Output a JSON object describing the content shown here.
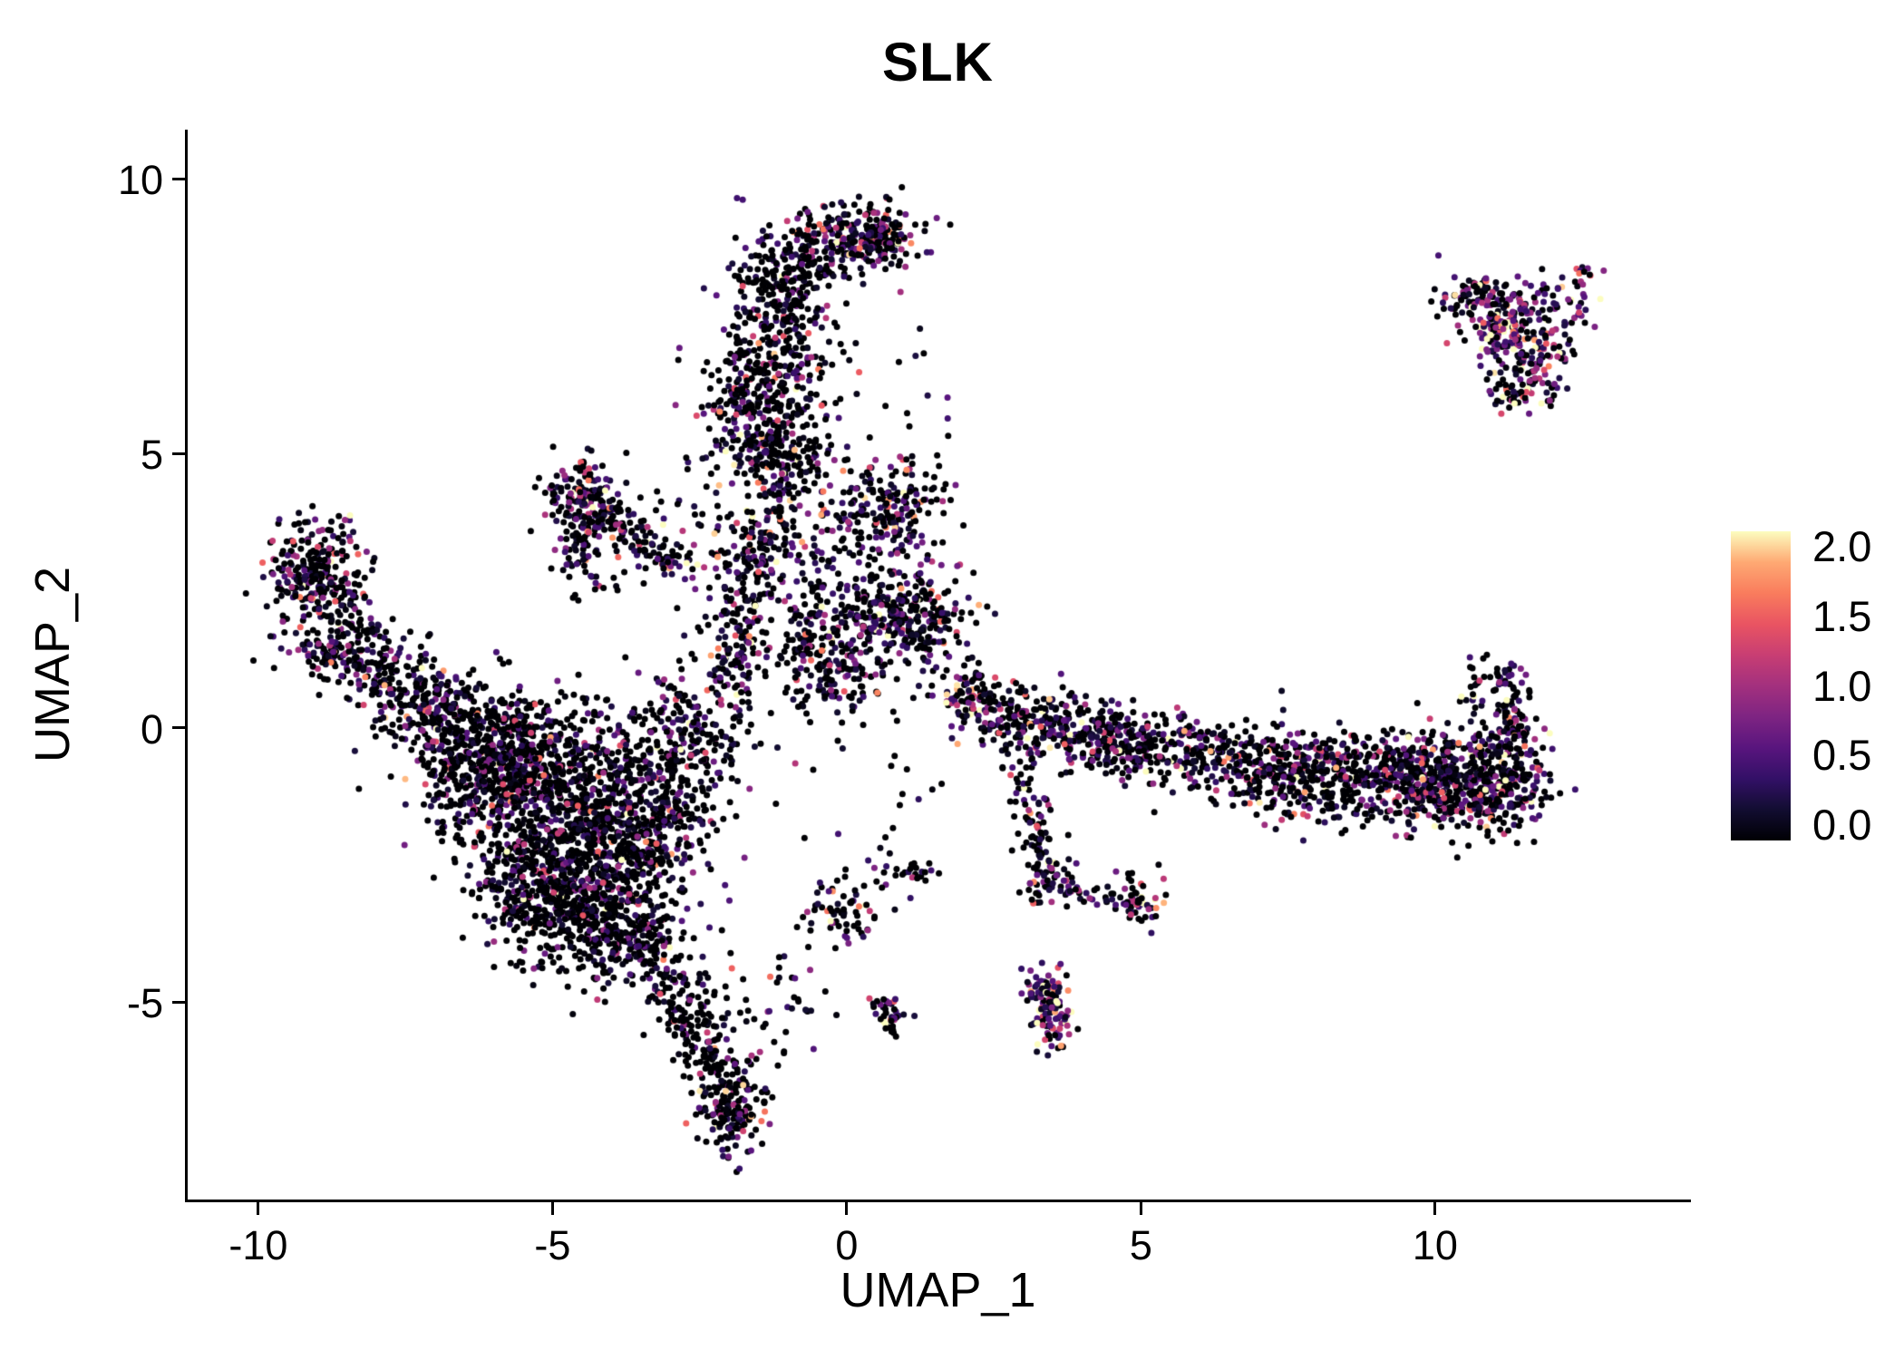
{
  "title": "SLK",
  "layout_colors": {
    "background": "#ffffff",
    "axis": "#000000",
    "text": "#000000"
  },
  "chart_data": {
    "type": "scatter",
    "title": "SLK",
    "xlabel": "UMAP_1",
    "ylabel": "UMAP_2",
    "xlim": [
      -11.2,
      14.3
    ],
    "ylim": [
      -8.6,
      10.9
    ],
    "grid": false,
    "x_ticks": [
      {
        "value": -10,
        "label": "-10"
      },
      {
        "value": -5,
        "label": "-5"
      },
      {
        "value": 0,
        "label": "0"
      },
      {
        "value": 5,
        "label": "5"
      },
      {
        "value": 10,
        "label": "10"
      }
    ],
    "y_ticks": [
      {
        "value": -5,
        "label": "-5"
      },
      {
        "value": 0,
        "label": "0"
      },
      {
        "value": 5,
        "label": "5"
      },
      {
        "value": 10,
        "label": "10"
      }
    ],
    "legend": {
      "position": "right",
      "domain": [
        0,
        2
      ],
      "ticks": [
        {
          "value": 2.0,
          "label": "2.0"
        },
        {
          "value": 1.5,
          "label": "1.5"
        },
        {
          "value": 1.0,
          "label": "1.0"
        },
        {
          "value": 0.5,
          "label": "0.5"
        },
        {
          "value": 0.0,
          "label": "0.0"
        }
      ]
    },
    "color_scale": {
      "name": "magma",
      "value_domain": [
        0,
        2.05
      ],
      "stops": [
        "#000004",
        "#120d31",
        "#331067",
        "#59157e",
        "#7e2482",
        "#a3307e",
        "#c83e73",
        "#e95462",
        "#f97c5d",
        "#fea973",
        "#fcfdbf"
      ]
    },
    "point_radius_px": 3.5,
    "seed": 7,
    "clusters": {
      "gauss_format": "[center_x, center_y, sd_x, sd_y, n_points, p_zero_expression, expression_scale]",
      "gauss": [
        [
          0.15,
          8.95,
          0.5,
          0.3,
          220,
          0.5,
          0.6
        ],
        [
          0.7,
          9.0,
          0.2,
          0.25,
          60,
          0.45,
          0.7
        ],
        [
          -0.9,
          8.3,
          0.45,
          0.4,
          150,
          0.55,
          0.55
        ],
        [
          -1.25,
          7.0,
          0.5,
          0.8,
          280,
          0.55,
          0.6
        ],
        [
          -1.45,
          5.6,
          0.5,
          0.6,
          260,
          0.5,
          0.6
        ],
        [
          -0.9,
          4.9,
          0.35,
          0.35,
          80,
          0.5,
          0.6
        ],
        [
          0.65,
          3.95,
          0.5,
          0.5,
          200,
          0.45,
          0.65
        ],
        [
          0.95,
          2.05,
          0.55,
          0.45,
          280,
          0.45,
          0.65
        ],
        [
          -0.4,
          3.0,
          0.8,
          1.1,
          130,
          0.55,
          0.55
        ],
        [
          -4.4,
          4.25,
          0.33,
          0.28,
          130,
          0.45,
          0.65
        ],
        [
          -4.55,
          3.3,
          0.18,
          0.55,
          70,
          0.5,
          0.6
        ],
        [
          -3.6,
          3.5,
          0.55,
          0.45,
          60,
          0.6,
          0.5
        ],
        [
          -2.3,
          3.3,
          0.4,
          0.6,
          40,
          0.55,
          0.55
        ],
        [
          -9.0,
          2.8,
          0.42,
          0.5,
          260,
          0.45,
          0.7
        ],
        [
          -8.55,
          1.5,
          0.5,
          0.4,
          170,
          0.5,
          0.6
        ],
        [
          -7.6,
          0.3,
          0.45,
          0.4,
          50,
          0.55,
          0.55
        ],
        [
          -5.2,
          -1.2,
          0.9,
          0.8,
          600,
          0.6,
          0.5
        ],
        [
          -4.2,
          -2.4,
          0.8,
          0.8,
          600,
          0.6,
          0.5
        ],
        [
          -5.7,
          -0.3,
          0.7,
          0.5,
          300,
          0.6,
          0.5
        ],
        [
          -3.3,
          -1.3,
          0.6,
          0.8,
          280,
          0.6,
          0.5
        ],
        [
          -4.5,
          -3.6,
          0.6,
          0.5,
          230,
          0.62,
          0.5
        ],
        [
          -2.8,
          -0.2,
          0.55,
          0.55,
          180,
          0.58,
          0.55
        ],
        [
          -6.4,
          -0.6,
          0.5,
          0.5,
          150,
          0.6,
          0.5
        ],
        [
          -6.9,
          0.2,
          0.35,
          0.35,
          70,
          0.6,
          0.5
        ],
        [
          -5.3,
          -2.8,
          0.5,
          0.45,
          200,
          0.62,
          0.5
        ],
        [
          -3.6,
          -3.9,
          0.45,
          0.4,
          150,
          0.6,
          0.5
        ],
        [
          -0.55,
          1.5,
          0.5,
          0.55,
          140,
          0.5,
          0.6
        ],
        [
          0.1,
          0.9,
          0.4,
          0.35,
          50,
          0.5,
          0.6
        ],
        [
          -1.95,
          -6.95,
          0.3,
          0.42,
          170,
          0.55,
          0.6
        ],
        [
          -1.1,
          -4.9,
          0.45,
          0.5,
          40,
          0.6,
          0.5
        ],
        [
          0.7,
          -5.2,
          0.13,
          0.2,
          40,
          0.4,
          0.7
        ],
        [
          -0.1,
          -3.35,
          0.3,
          0.3,
          60,
          0.55,
          0.55
        ],
        [
          0.9,
          -2.75,
          0.5,
          0.2,
          30,
          0.6,
          0.5
        ],
        [
          2.1,
          0.6,
          0.25,
          0.22,
          70,
          0.45,
          0.6
        ],
        [
          3.0,
          0.15,
          0.5,
          0.3,
          170,
          0.5,
          0.6
        ],
        [
          4.25,
          -0.15,
          0.55,
          0.3,
          200,
          0.5,
          0.6
        ],
        [
          5.5,
          -0.4,
          0.7,
          0.32,
          180,
          0.55,
          0.55
        ],
        [
          7.0,
          -0.65,
          0.8,
          0.38,
          230,
          0.5,
          0.6
        ],
        [
          8.5,
          -0.9,
          0.8,
          0.42,
          320,
          0.48,
          0.62
        ],
        [
          10.0,
          -1.0,
          0.75,
          0.45,
          420,
          0.45,
          0.65
        ],
        [
          11.15,
          -0.85,
          0.4,
          0.5,
          240,
          0.42,
          0.68
        ],
        [
          10.7,
          0.8,
          0.15,
          0.25,
          25,
          0.45,
          0.6
        ],
        [
          3.45,
          -2.75,
          0.22,
          0.28,
          55,
          0.45,
          0.65
        ],
        [
          4.95,
          -3.15,
          0.22,
          0.25,
          55,
          0.45,
          0.65
        ],
        [
          11.1,
          7.5,
          0.37,
          0.37,
          150,
          0.3,
          0.85
        ],
        [
          11.6,
          6.7,
          0.4,
          0.4,
          120,
          0.35,
          0.8
        ],
        [
          10.55,
          7.85,
          0.25,
          0.2,
          55,
          0.35,
          0.8
        ],
        [
          12.0,
          7.6,
          0.4,
          0.3,
          50,
          0.35,
          0.8
        ],
        [
          12.5,
          8.3,
          0.12,
          0.12,
          12,
          0.2,
          1.1
        ],
        [
          11.5,
          6.1,
          0.3,
          0.2,
          35,
          0.4,
          0.7
        ],
        [
          1.6,
          1.0,
          0.35,
          0.4,
          25,
          0.5,
          0.6
        ],
        [
          0.3,
          -1.2,
          0.9,
          0.9,
          25,
          0.6,
          0.5
        ],
        [
          1.1,
          5.9,
          0.4,
          0.8,
          15,
          0.5,
          0.6
        ]
      ],
      "lines_format": "[x1, y1, x2, y2, jitter_sd, n_points, p_zero_expression, expression_scale]",
      "lines": [
        [
          -4.25,
          4.0,
          -2.85,
          2.95,
          0.15,
          90,
          0.5,
          0.6
        ],
        [
          -8.2,
          1.05,
          -6.4,
          0.5,
          0.28,
          130,
          0.55,
          0.55
        ],
        [
          -2.05,
          0.5,
          -1.15,
          4.4,
          0.33,
          280,
          0.5,
          0.6
        ],
        [
          -3.1,
          -4.4,
          -2.1,
          -6.3,
          0.28,
          190,
          0.62,
          0.5
        ],
        [
          2.9,
          -0.4,
          3.3,
          -2.4,
          0.18,
          80,
          0.55,
          0.55
        ],
        [
          3.7,
          -2.9,
          4.7,
          -3.1,
          0.12,
          25,
          0.5,
          0.6
        ],
        [
          3.3,
          -4.6,
          3.6,
          -5.75,
          0.17,
          130,
          0.12,
          1.0
        ],
        [
          11.35,
          -0.3,
          11.25,
          1.1,
          0.15,
          80,
          0.45,
          0.65
        ]
      ]
    }
  }
}
